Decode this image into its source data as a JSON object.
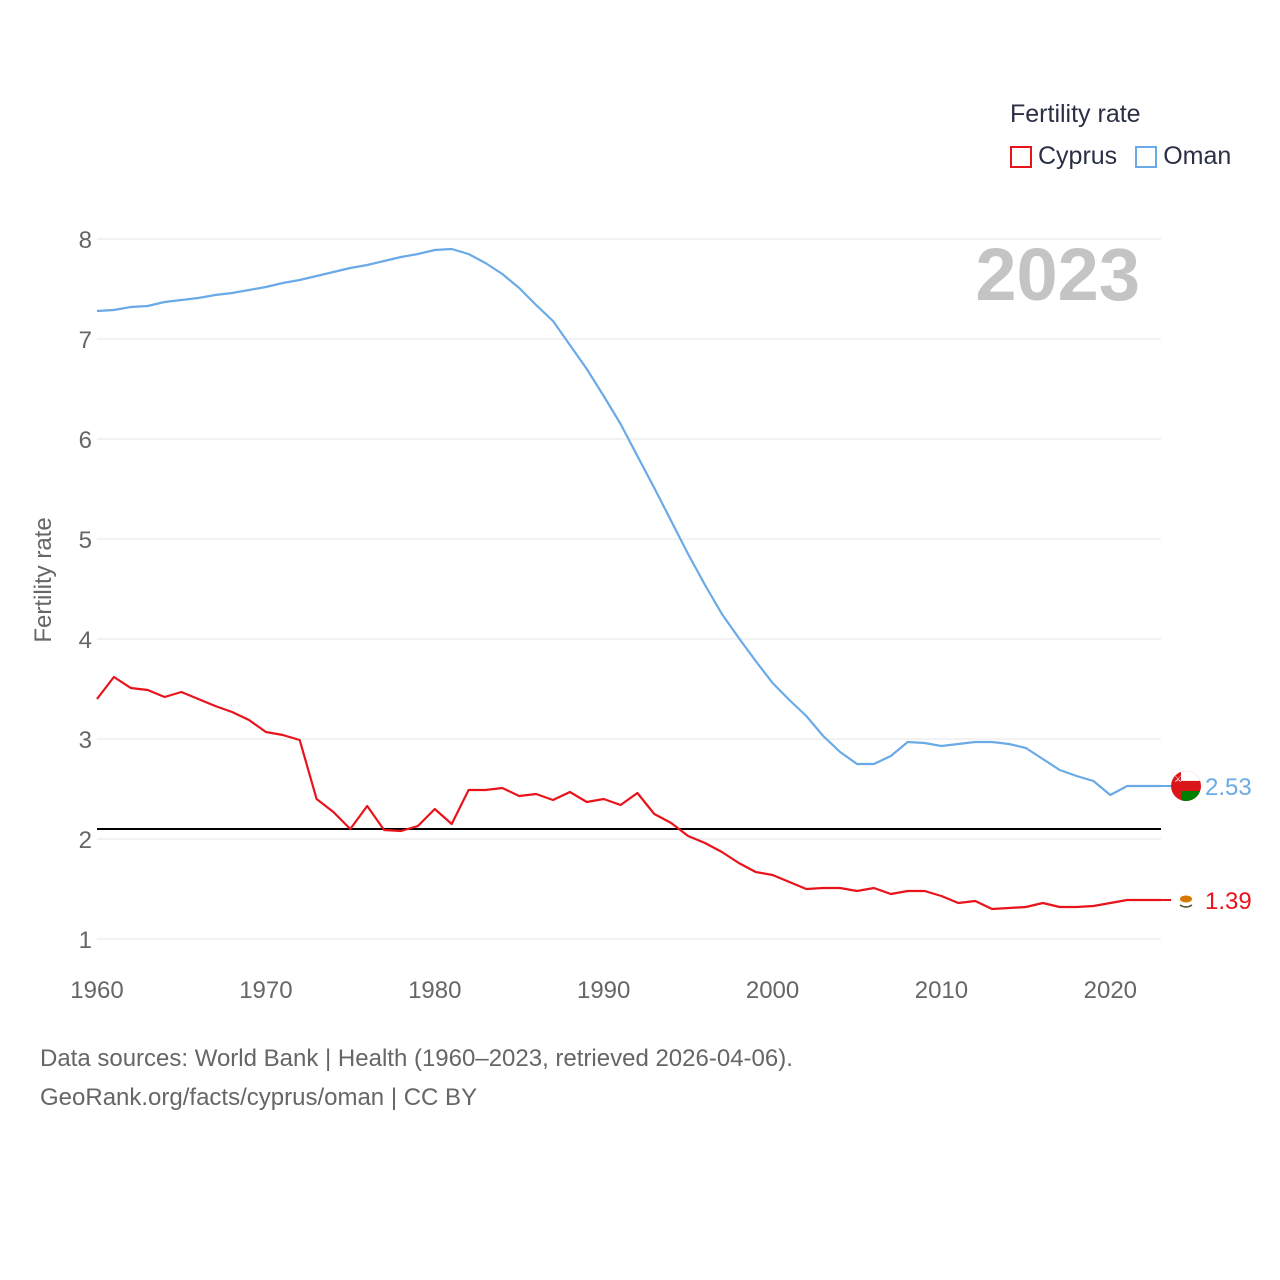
{
  "legend": {
    "title": "Fertility rate"
  },
  "footer": {
    "line1": "Data sources: World Bank | Health (1960–2023, retrieved 2026-04-06).",
    "line2": "GeoRank.org/facts/cyprus/oman | CC BY"
  },
  "colors": {
    "cyprus": "#e8131b",
    "oman": "#6aaae6",
    "reference": "#000000",
    "grid": "#e6e6e6",
    "year_watermark": "#c4c4c4",
    "axis_text": "#666666"
  },
  "chart_data": {
    "type": "line",
    "title": "",
    "year_label": "2023",
    "xlabel": "",
    "ylabel": "Fertility rate",
    "xlim": [
      1960,
      2023
    ],
    "ylim": [
      1,
      8
    ],
    "xticks": [
      1960,
      1970,
      1980,
      1990,
      2000,
      2010,
      2020
    ],
    "yticks": [
      1,
      2,
      3,
      4,
      5,
      6,
      7,
      8
    ],
    "reference_line": {
      "y": 2.1
    },
    "series": [
      {
        "name": "Cyprus",
        "key": "cyprus",
        "end_label": "1.39",
        "x": [
          1960,
          1961,
          1962,
          1963,
          1964,
          1965,
          1966,
          1967,
          1968,
          1969,
          1970,
          1971,
          1972,
          1973,
          1974,
          1975,
          1976,
          1977,
          1978,
          1979,
          1980,
          1981,
          1982,
          1983,
          1984,
          1985,
          1986,
          1987,
          1988,
          1989,
          1990,
          1991,
          1992,
          1993,
          1994,
          1995,
          1996,
          1997,
          1998,
          1999,
          2000,
          2001,
          2002,
          2003,
          2004,
          2005,
          2006,
          2007,
          2008,
          2009,
          2010,
          2011,
          2012,
          2013,
          2014,
          2015,
          2016,
          2017,
          2018,
          2019,
          2020,
          2021,
          2022,
          2023
        ],
        "values": [
          3.4,
          3.62,
          3.51,
          3.49,
          3.42,
          3.47,
          3.4,
          3.33,
          3.27,
          3.19,
          3.07,
          3.04,
          2.99,
          2.4,
          2.27,
          2.1,
          2.33,
          2.09,
          2.08,
          2.13,
          2.3,
          2.15,
          2.49,
          2.49,
          2.51,
          2.43,
          2.45,
          2.39,
          2.47,
          2.37,
          2.4,
          2.34,
          2.46,
          2.25,
          2.16,
          2.03,
          1.96,
          1.87,
          1.76,
          1.67,
          1.64,
          1.57,
          1.5,
          1.51,
          1.51,
          1.48,
          1.51,
          1.45,
          1.48,
          1.48,
          1.43,
          1.36,
          1.38,
          1.3,
          1.31,
          1.32,
          1.36,
          1.32,
          1.32,
          1.33,
          1.36,
          1.39,
          1.39,
          1.39
        ]
      },
      {
        "name": "Oman",
        "key": "oman",
        "end_label": "2.53",
        "x": [
          1960,
          1961,
          1962,
          1963,
          1964,
          1965,
          1966,
          1967,
          1968,
          1969,
          1970,
          1971,
          1972,
          1973,
          1974,
          1975,
          1976,
          1977,
          1978,
          1979,
          1980,
          1981,
          1982,
          1983,
          1984,
          1985,
          1986,
          1987,
          1988,
          1989,
          1990,
          1991,
          1992,
          1993,
          1994,
          1995,
          1996,
          1997,
          1998,
          1999,
          2000,
          2001,
          2002,
          2003,
          2004,
          2005,
          2006,
          2007,
          2008,
          2009,
          2010,
          2011,
          2012,
          2013,
          2014,
          2015,
          2016,
          2017,
          2018,
          2019,
          2020,
          2021,
          2022,
          2023
        ],
        "values": [
          7.28,
          7.29,
          7.32,
          7.33,
          7.37,
          7.39,
          7.41,
          7.44,
          7.46,
          7.49,
          7.52,
          7.56,
          7.59,
          7.63,
          7.67,
          7.71,
          7.74,
          7.78,
          7.82,
          7.85,
          7.89,
          7.9,
          7.85,
          7.76,
          7.65,
          7.51,
          7.34,
          7.18,
          6.94,
          6.7,
          6.43,
          6.15,
          5.83,
          5.51,
          5.18,
          4.85,
          4.54,
          4.25,
          4.01,
          3.78,
          3.56,
          3.39,
          3.23,
          3.03,
          2.87,
          2.75,
          2.75,
          2.83,
          2.97,
          2.96,
          2.93,
          2.95,
          2.97,
          2.97,
          2.95,
          2.91,
          2.8,
          2.69,
          2.63,
          2.58,
          2.44,
          2.53,
          2.53,
          2.53
        ]
      }
    ],
    "legend": [
      {
        "label": "Cyprus",
        "key": "cyprus"
      },
      {
        "label": "Oman",
        "key": "oman"
      }
    ],
    "legend_position": "top-right"
  }
}
